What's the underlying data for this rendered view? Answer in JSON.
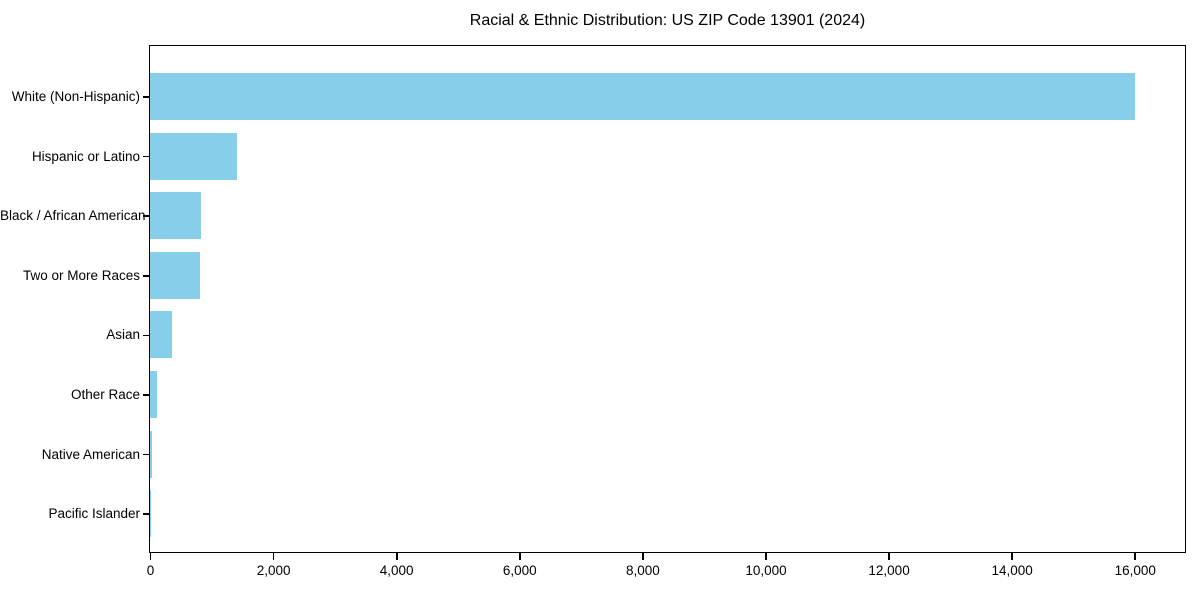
{
  "chart_data": {
    "type": "bar",
    "orientation": "horizontal",
    "title": "Racial & Ethnic Distribution: US ZIP Code 13901 (2024)",
    "categories": [
      "White (Non-Hispanic)",
      "Hispanic or Latino",
      "Black / African American",
      "Two or More Races",
      "Asian",
      "Other Race",
      "Native American",
      "Pacific Islander"
    ],
    "values": [
      16000,
      1410,
      830,
      810,
      360,
      115,
      25,
      5
    ],
    "xlabel": "",
    "ylabel": "",
    "xlim": [
      0,
      16800
    ],
    "xticks": [
      0,
      2000,
      4000,
      6000,
      8000,
      10000,
      12000,
      14000,
      16000
    ],
    "xtick_labels": [
      "0",
      "2,000",
      "4,000",
      "6,000",
      "8,000",
      "10,000",
      "12,000",
      "14,000",
      "16,000"
    ],
    "bar_color": "#87CEEB",
    "axis_color": "#000000",
    "text_color": "#000000",
    "background_color": "#ffffff",
    "grid": false,
    "legend": null
  }
}
